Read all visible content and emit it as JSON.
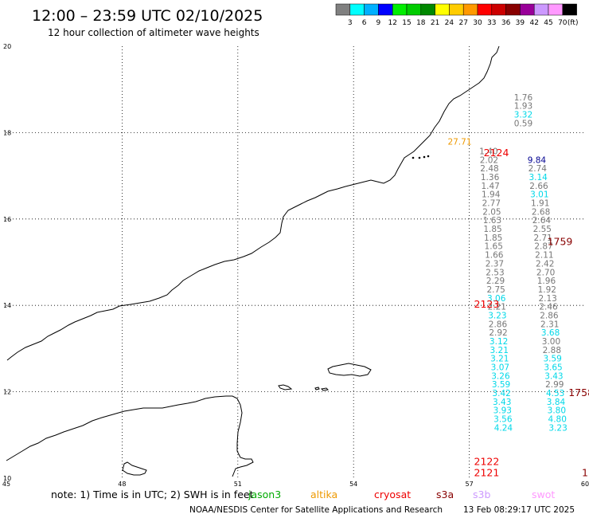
{
  "header": {
    "title": "12:00 – 23:59 UTC 02/10/2025",
    "subtitle": "12 hour collection of altimeter wave heights"
  },
  "legend": {
    "colors": [
      "#808080",
      "#00ffff",
      "#00b0ff",
      "#0000ff",
      "#00ee00",
      "#00cc00",
      "#008800",
      "#ffff00",
      "#ffcc00",
      "#ff9900",
      "#ff0000",
      "#cc0000",
      "#880000",
      "#990099",
      "#cc99ff",
      "#ff99ff",
      "#000000"
    ],
    "labels": [
      "3",
      "6",
      "9",
      "12",
      "15",
      "18",
      "21",
      "24",
      "27",
      "30",
      "33",
      "36",
      "39",
      "42",
      "45",
      "70",
      "(ft)"
    ]
  },
  "axes": {
    "x_ticks": [
      "45",
      "48",
      "51",
      "54",
      "57",
      "60"
    ],
    "y_ticks": [
      "20",
      "18",
      "16",
      "14",
      "12",
      "10"
    ]
  },
  "point_colors": {
    "gray": "#777777",
    "cyan": "#00d8e8",
    "navy": "#000090",
    "orange": "#ee9900",
    "red": "#ee0000",
    "darkred": "#880000"
  },
  "tracks": {
    "left": {
      "x": 57.5,
      "start_y": 17.5,
      "step": 0.2,
      "points": [
        {
          "v": "1.40",
          "c": "gray"
        },
        {
          "v": "2.02",
          "c": "gray"
        },
        {
          "v": "2.48",
          "c": "gray"
        },
        {
          "v": "1.36",
          "c": "gray"
        },
        {
          "v": "1.47",
          "c": "gray"
        },
        {
          "v": "1.94",
          "c": "gray"
        },
        {
          "v": "2.77",
          "c": "gray"
        },
        {
          "v": "2.05",
          "c": "gray"
        },
        {
          "v": "1.63",
          "c": "gray"
        },
        {
          "v": "1.85",
          "c": "gray"
        },
        {
          "v": "1.85",
          "c": "gray"
        },
        {
          "v": "1.65",
          "c": "gray"
        },
        {
          "v": "1.66",
          "c": "gray"
        },
        {
          "v": "2.37",
          "c": "gray"
        },
        {
          "v": "2.53",
          "c": "gray"
        },
        {
          "v": "2.29",
          "c": "gray"
        },
        {
          "v": "2.75",
          "c": "gray"
        },
        {
          "v": "3.06",
          "c": "cyan"
        },
        {
          "v": "2.21",
          "c": "gray"
        },
        {
          "v": "3.23",
          "c": "cyan"
        },
        {
          "v": "2.86",
          "c": "gray"
        },
        {
          "v": "2.92",
          "c": "gray"
        },
        {
          "v": "3.12",
          "c": "cyan"
        },
        {
          "v": "3.21",
          "c": "cyan"
        },
        {
          "v": "3.21",
          "c": "cyan"
        },
        {
          "v": "3.07",
          "c": "cyan"
        },
        {
          "v": "3.26",
          "c": "cyan"
        },
        {
          "v": "3.59",
          "c": "cyan"
        },
        {
          "v": "3.42",
          "c": "cyan"
        },
        {
          "v": "3.43",
          "c": "cyan"
        },
        {
          "v": "3.93",
          "c": "cyan"
        },
        {
          "v": "3.56",
          "c": "cyan"
        },
        {
          "v": "4.24",
          "c": "cyan"
        }
      ]
    },
    "top": {
      "x": 58.4,
      "start_y": 18.75,
      "step": 0.2,
      "points": [
        {
          "v": "1.76",
          "c": "gray"
        },
        {
          "v": "1.93",
          "c": "gray"
        },
        {
          "v": "3.32",
          "c": "cyan"
        },
        {
          "v": "0.59",
          "c": "gray"
        }
      ]
    },
    "right": {
      "x_start": 58.75,
      "x_end": 59.3,
      "start_y": 17.3,
      "step": 0.2,
      "points": [
        {
          "v": "9.84",
          "c": "navy"
        },
        {
          "v": "2.74",
          "c": "gray"
        },
        {
          "v": "3.14",
          "c": "cyan"
        },
        {
          "v": "2.66",
          "c": "gray"
        },
        {
          "v": "3.01",
          "c": "cyan"
        },
        {
          "v": "1.91",
          "c": "gray"
        },
        {
          "v": "2.68",
          "c": "gray"
        },
        {
          "v": "2.64",
          "c": "gray"
        },
        {
          "v": "2.55",
          "c": "gray"
        },
        {
          "v": "2.71",
          "c": "gray"
        },
        {
          "v": "2.87",
          "c": "gray"
        },
        {
          "v": "2.11",
          "c": "gray"
        },
        {
          "v": "2.42",
          "c": "gray"
        },
        {
          "v": "2.70",
          "c": "gray"
        },
        {
          "v": "1.96",
          "c": "gray"
        },
        {
          "v": "1.92",
          "c": "gray"
        },
        {
          "v": "2.13",
          "c": "gray"
        },
        {
          "v": "2.46",
          "c": "gray"
        },
        {
          "v": "2.86",
          "c": "gray"
        },
        {
          "v": "2.31",
          "c": "gray"
        },
        {
          "v": "3.68",
          "c": "cyan"
        },
        {
          "v": "3.00",
          "c": "gray"
        },
        {
          "v": "2.88",
          "c": "gray"
        },
        {
          "v": "3.59",
          "c": "cyan"
        },
        {
          "v": "3.65",
          "c": "cyan"
        },
        {
          "v": "3.43",
          "c": "cyan"
        },
        {
          "v": "2.99",
          "c": "gray"
        },
        {
          "v": "4.53",
          "c": "cyan"
        },
        {
          "v": "3.84",
          "c": "cyan"
        },
        {
          "v": "3.80",
          "c": "cyan"
        },
        {
          "v": "4.80",
          "c": "cyan"
        },
        {
          "v": "3.23",
          "c": "cyan"
        }
      ]
    }
  },
  "singles": [
    {
      "v": "27.71",
      "c": "orange",
      "lon": 56.75,
      "lat": 17.72
    }
  ],
  "timestamps": [
    {
      "t": "2124",
      "c": "red",
      "lon": 57.7,
      "lat": 17.45
    },
    {
      "t": "1759",
      "c": "darkred",
      "lon": 59.35,
      "lat": 15.4
    },
    {
      "t": "2123",
      "c": "red",
      "lon": 57.45,
      "lat": 13.95
    },
    {
      "t": "1758",
      "c": "darkred",
      "lon": 59.9,
      "lat": 11.9
    },
    {
      "t": "2122",
      "c": "red",
      "lon": 57.45,
      "lat": 10.3
    },
    {
      "t": "2121",
      "c": "red",
      "lon": 57.45,
      "lat": 10.05
    },
    {
      "t": "1",
      "c": "darkred",
      "lon": 60.0,
      "lat": 10.05
    }
  ],
  "note": {
    "text": "note: 1) Time is in UTC; 2) SWH is in feet",
    "satellites": [
      {
        "name": "jason3",
        "color": "#00aa00"
      },
      {
        "name": "altika",
        "color": "#ee9900"
      },
      {
        "name": "cryosat",
        "color": "#ee0000"
      },
      {
        "name": "s3a",
        "color": "#880000"
      },
      {
        "name": "s3b",
        "color": "#cc99ff"
      },
      {
        "name": "swot",
        "color": "#ff99ff"
      }
    ]
  },
  "footer": {
    "credit": "NOAA/NESDIS Center for Satellite Applications and Research",
    "generated": "13 Feb 08:29:17 UTC 2025"
  }
}
